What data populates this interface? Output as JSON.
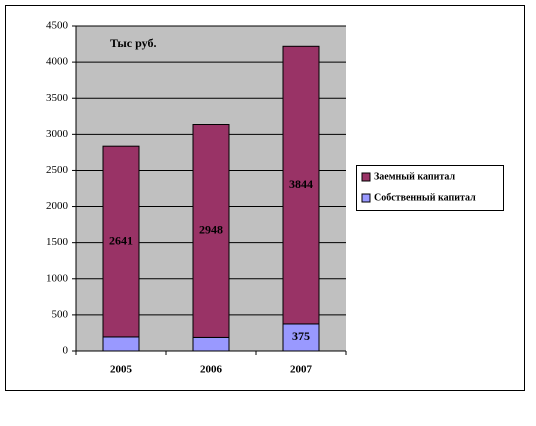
{
  "chart_data": {
    "type": "stacked_bar",
    "annotation": "Тыс руб.",
    "categories": [
      "2005",
      "2006",
      "2007"
    ],
    "series": [
      {
        "name": "Собственный капитал",
        "color": "#9999ff",
        "values": [
          195,
          188,
          375
        ]
      },
      {
        "name": "Заемный капитал",
        "color": "#993366",
        "values": [
          2641,
          2948,
          3844
        ]
      }
    ],
    "ylim": [
      0,
      4500
    ],
    "yticks": [
      0,
      500,
      1000,
      1500,
      2000,
      2500,
      3000,
      3500,
      4000,
      4500
    ],
    "grid": true,
    "plot_background": "#c0c0c0",
    "legend": "right"
  }
}
